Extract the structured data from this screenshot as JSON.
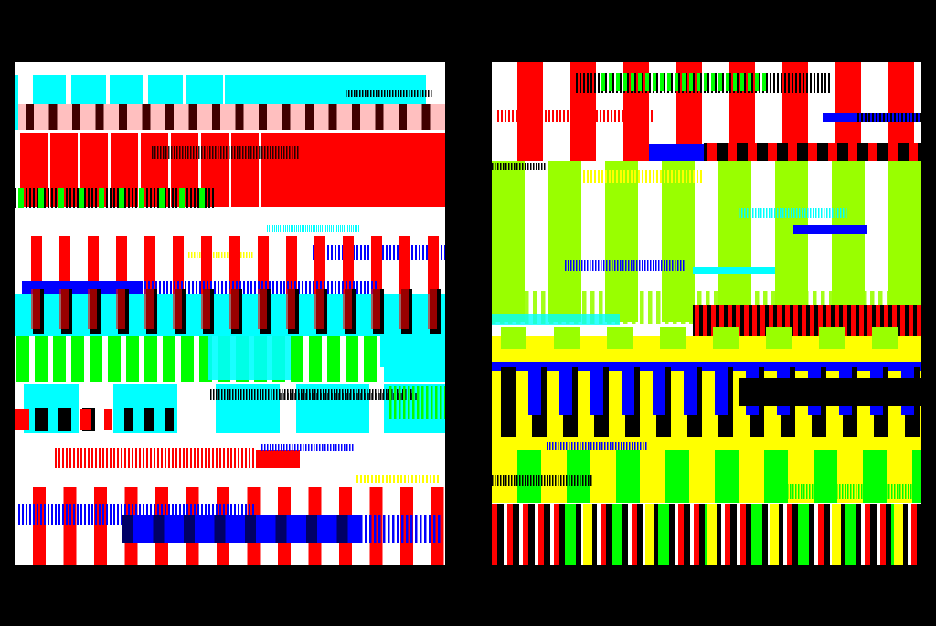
{
  "artwork": {
    "title": "",
    "background": "#000000",
    "panels": [
      {
        "id": "left",
        "background": "#ffffff",
        "dominant_colors": [
          "#ff0000",
          "#00ffff",
          "#00ff00",
          "#0000ff",
          "#000000",
          "#ffff00"
        ]
      },
      {
        "id": "right",
        "background": "#ffffff",
        "dominant_colors": [
          "#ff0000",
          "#99ff00",
          "#ffff00",
          "#0000ff",
          "#00ff00",
          "#000000",
          "#00ffff"
        ]
      }
    ]
  },
  "palette": {
    "red": "#ff0000",
    "cyan": "#00ffff",
    "green": "#00ff00",
    "lime": "#99ff00",
    "yellow": "#ffff00",
    "blue": "#0000ff",
    "black": "#000000",
    "white": "#ffffff"
  }
}
